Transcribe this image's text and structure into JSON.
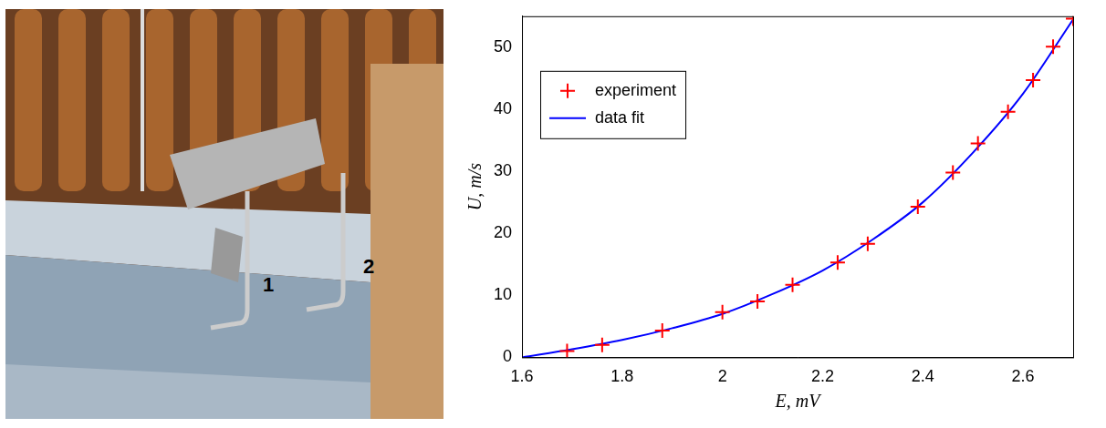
{
  "photo": {
    "labels": [
      "1",
      "2"
    ]
  },
  "chart_data": {
    "type": "scatter",
    "x_label": "E, mV",
    "y_label": "U, m/s",
    "xlim": [
      1.6,
      2.7
    ],
    "xticks": [
      1.6,
      1.8,
      2,
      2.2,
      2.4,
      2.6
    ],
    "ylim": [
      0,
      55
    ],
    "yticks": [
      0,
      10,
      20,
      30,
      40,
      50
    ],
    "grid": false,
    "legend": "upper left",
    "series": [
      {
        "name": "experiment",
        "type": "scatter",
        "color": "#ff0000",
        "marker": "plus",
        "x": [
          1.69,
          1.76,
          1.88,
          2.0,
          2.07,
          2.14,
          2.23,
          2.29,
          2.39,
          2.46,
          2.51,
          2.57,
          2.62,
          2.66,
          2.7
        ],
        "values": [
          1.0,
          2.0,
          4.3,
          7.3,
          9.0,
          11.7,
          15.3,
          18.3,
          24.3,
          29.8,
          34.5,
          39.6,
          44.7,
          50.1,
          54.6
        ]
      },
      {
        "name": "data fit",
        "type": "line",
        "color": "#0000ff",
        "line_style": "solid",
        "x": [
          1.6,
          1.7,
          1.8,
          1.9,
          2.0,
          2.1,
          2.2,
          2.3,
          2.4,
          2.5,
          2.6,
          2.7
        ],
        "values": [
          0,
          1.3,
          2.8,
          4.7,
          7.0,
          10.2,
          14.0,
          19.0,
          25.0,
          33.0,
          42.5,
          54.5
        ]
      }
    ]
  }
}
